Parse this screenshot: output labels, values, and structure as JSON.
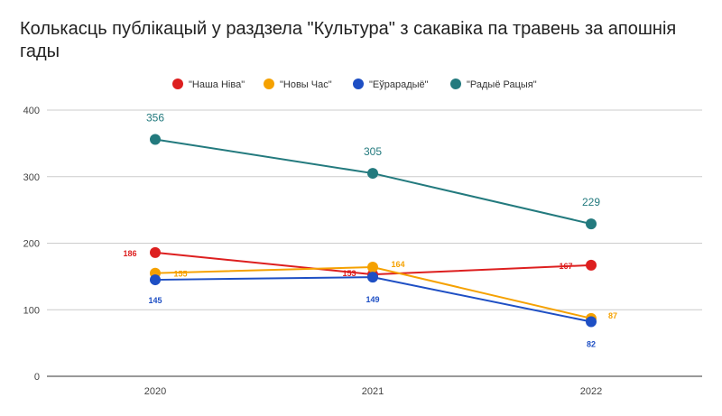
{
  "chart_data": {
    "type": "line",
    "title": "Колькасць публікацый у раздзела \"Культура\" з сакавіка па травень за апошнія гады",
    "xlabel": "",
    "ylabel": "",
    "categories": [
      "2020",
      "2021",
      "2022"
    ],
    "ylim": [
      0,
      400
    ],
    "yticks": [
      "0",
      "100",
      "200",
      "300",
      "400"
    ],
    "grid": true,
    "legend_position": "top",
    "series": [
      {
        "name": "\"Наша Ніва\"",
        "color": "#dd1f1f",
        "values": [
          186,
          153,
          167
        ],
        "labels": [
          "186",
          "153",
          "167"
        ]
      },
      {
        "name": "\"Новы Час\"",
        "color": "#f5a100",
        "values": [
          155,
          164,
          87
        ],
        "labels": [
          "155",
          "164",
          "87"
        ]
      },
      {
        "name": "\"Еўрарадыё\"",
        "color": "#1e4fc4",
        "values": [
          145,
          149,
          82
        ],
        "labels": [
          "145",
          "149",
          "82"
        ]
      },
      {
        "name": "\"Радыё Рацыя\"",
        "color": "#237a7e",
        "values": [
          356,
          305,
          229
        ],
        "labels": [
          "356",
          "305",
          "229"
        ]
      }
    ]
  }
}
